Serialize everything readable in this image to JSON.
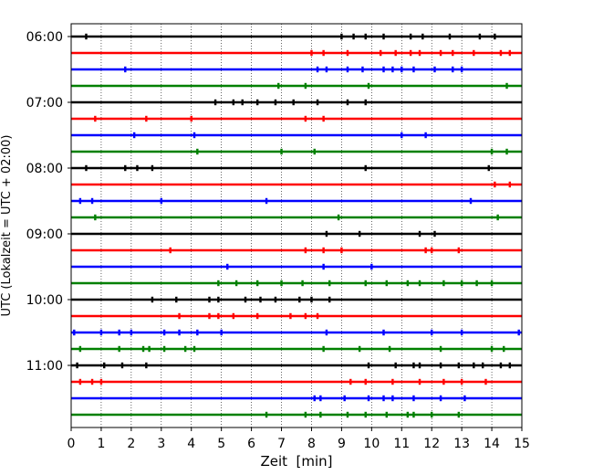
{
  "chart_data": {
    "type": "line",
    "subtype": "helicorder",
    "xlabel": "Zeit  [min]",
    "ylabel": "UTC (Lokalzeit = UTC + 02:00)",
    "xlim": [
      0,
      15
    ],
    "x_ticks": [
      "0",
      "1",
      "2",
      "3",
      "4",
      "5",
      "6",
      "7",
      "8",
      "9",
      "10",
      "11",
      "12",
      "13",
      "14",
      "15"
    ],
    "y_tick_labels": [
      "06:00",
      "07:00",
      "08:00",
      "09:00",
      "10:00",
      "11:00"
    ],
    "grid": "vertical dotted",
    "row_interval_min": 15,
    "color_cycle": [
      "#000000",
      "#ff0000",
      "#0000ff",
      "#008000"
    ],
    "series": [
      {
        "start": "06:00",
        "events_min": [
          0.5,
          9.0,
          9.4,
          9.8,
          10.4,
          11.3,
          11.7,
          12.6,
          13.6,
          14.1
        ]
      },
      {
        "start": "06:15",
        "events_min": [
          8.0,
          8.4,
          9.2,
          10.3,
          10.8,
          11.3,
          11.6,
          12.3,
          12.7,
          13.4,
          14.3,
          14.6
        ]
      },
      {
        "start": "06:30",
        "events_min": [
          1.8,
          8.2,
          8.5,
          9.2,
          9.7,
          10.4,
          10.7,
          11.0,
          11.4,
          12.1,
          12.7,
          13.0
        ]
      },
      {
        "start": "06:45",
        "events_min": [
          6.9,
          7.8,
          9.9,
          14.5
        ]
      },
      {
        "start": "07:00",
        "events_min": [
          4.8,
          5.4,
          5.7,
          6.2,
          6.8,
          7.4,
          8.2,
          9.2,
          9.8
        ]
      },
      {
        "start": "07:15",
        "events_min": [
          0.8,
          2.5,
          4.0,
          7.8,
          8.4
        ]
      },
      {
        "start": "07:30",
        "events_min": [
          2.1,
          4.1,
          11.0,
          11.8
        ]
      },
      {
        "start": "07:45",
        "events_min": [
          4.2,
          7.0,
          8.1,
          14.0,
          14.5
        ]
      },
      {
        "start": "08:00",
        "events_min": [
          0.5,
          1.8,
          2.2,
          2.7,
          9.8,
          13.9
        ]
      },
      {
        "start": "08:15",
        "events_min": [
          14.1,
          14.6
        ]
      },
      {
        "start": "08:30",
        "events_min": [
          0.3,
          0.7,
          3.0,
          6.5,
          13.3
        ]
      },
      {
        "start": "08:45",
        "events_min": [
          0.8,
          8.9,
          14.2
        ]
      },
      {
        "start": "09:00",
        "events_min": [
          8.5,
          9.6,
          11.6,
          12.1
        ]
      },
      {
        "start": "09:15",
        "events_min": [
          3.3,
          7.8,
          8.4,
          9.0,
          11.8,
          12.0,
          12.9
        ]
      },
      {
        "start": "09:30",
        "events_min": [
          5.2,
          8.4,
          10.0
        ]
      },
      {
        "start": "09:45",
        "events_min": [
          4.9,
          5.5,
          6.2,
          7.0,
          7.7,
          8.6,
          9.8,
          10.5,
          11.2,
          11.6,
          12.4,
          13.0,
          13.5,
          14.0
        ]
      },
      {
        "start": "10:00",
        "events_min": [
          2.7,
          3.5,
          4.6,
          4.9,
          5.8,
          6.3,
          6.8,
          7.6,
          8.0,
          8.6
        ]
      },
      {
        "start": "10:15",
        "events_min": [
          3.6,
          4.6,
          4.9,
          5.4,
          6.2,
          7.3,
          7.8,
          8.2
        ]
      },
      {
        "start": "10:30",
        "events_min": [
          0.1,
          1.0,
          1.6,
          2.0,
          3.1,
          3.6,
          4.2,
          5.0,
          8.5,
          10.4,
          12.0,
          13.0,
          14.9
        ]
      },
      {
        "start": "10:45",
        "events_min": [
          0.3,
          1.6,
          2.4,
          2.6,
          3.1,
          3.8,
          4.1,
          8.4,
          9.6,
          10.6,
          12.3,
          14.0,
          14.4
        ]
      },
      {
        "start": "11:00",
        "events_min": [
          0.2,
          1.1,
          1.7,
          2.5,
          9.9,
          10.8,
          11.4,
          11.6,
          12.3,
          12.9,
          13.4,
          13.7,
          14.3,
          14.6
        ]
      },
      {
        "start": "11:15",
        "events_min": [
          0.3,
          0.7,
          1.0,
          9.3,
          9.8,
          10.7,
          11.6,
          12.4,
          13.0,
          13.8
        ]
      },
      {
        "start": "11:30",
        "events_min": [
          8.1,
          8.3,
          9.1,
          9.9,
          10.4,
          10.7,
          11.4,
          12.3,
          13.1
        ]
      },
      {
        "start": "11:45",
        "events_min": [
          6.5,
          7.8,
          8.3,
          9.2,
          9.8,
          10.5,
          11.2,
          11.4,
          12.0,
          12.9
        ]
      }
    ]
  }
}
